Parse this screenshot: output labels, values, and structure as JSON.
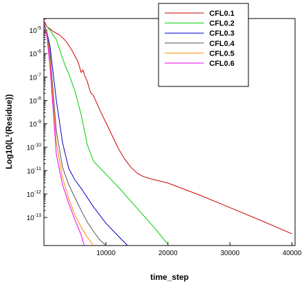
{
  "chart_data": {
    "type": "line",
    "xlabel": "time_step",
    "ylabel": "Log10(L¹(Residue))",
    "xlim": [
      0,
      40500
    ],
    "ylim": [
      -14.2,
      -4.5
    ],
    "y_scale": "log10",
    "grid": false,
    "legend_position": "top-right",
    "x_ticks": [
      {
        "value": 10000,
        "label": "10000"
      },
      {
        "value": 20000,
        "label": "20000"
      },
      {
        "value": 30000,
        "label": "30000"
      },
      {
        "value": 40000,
        "label": "40000"
      }
    ],
    "y_ticks": [
      {
        "value": -5,
        "base": "10",
        "exp": "-5"
      },
      {
        "value": -6,
        "base": "10",
        "exp": "-6"
      },
      {
        "value": -7,
        "base": "10",
        "exp": "-7"
      },
      {
        "value": -8,
        "base": "10",
        "exp": "-8"
      },
      {
        "value": -9,
        "base": "10",
        "exp": "-9"
      },
      {
        "value": -10,
        "base": "10",
        "exp": "-10"
      },
      {
        "value": -11,
        "base": "10",
        "exp": "-11"
      },
      {
        "value": -12,
        "base": "10",
        "exp": "-12"
      },
      {
        "value": -13,
        "base": "10",
        "exp": "-13"
      }
    ],
    "series": [
      {
        "name": "CFL0.1",
        "color": "#cc0000",
        "x": [
          0,
          500,
          1500,
          2500,
          3500,
          4500,
          5500,
          6000,
          6300,
          6600,
          7000,
          7500,
          8000,
          9000,
          10000,
          11000,
          12000,
          13000,
          14000,
          15000,
          16000,
          17000,
          18000,
          20000,
          25000,
          30000,
          35000,
          40000
        ],
        "y": [
          -4.6,
          -4.85,
          -5.05,
          -5.2,
          -5.45,
          -5.85,
          -6.35,
          -6.8,
          -6.7,
          -6.95,
          -7.2,
          -7.65,
          -7.8,
          -8.4,
          -8.95,
          -9.5,
          -10.05,
          -10.5,
          -10.85,
          -11.1,
          -11.25,
          -11.33,
          -11.4,
          -11.53,
          -12.03,
          -12.58,
          -13.13,
          -13.7
        ]
      },
      {
        "name": "CFL0.2",
        "color": "#00cc00",
        "x": [
          0,
          500,
          1000,
          2000,
          3000,
          3500,
          4000,
          5000,
          6000,
          7000,
          8000,
          10000,
          12000,
          14000,
          16000,
          18000,
          20000
        ],
        "y": [
          -4.7,
          -4.85,
          -5.0,
          -5.4,
          -6.2,
          -6.55,
          -6.85,
          -7.6,
          -8.6,
          -9.9,
          -10.6,
          -11.15,
          -11.7,
          -12.3,
          -12.9,
          -13.5,
          -14.15
        ]
      },
      {
        "name": "CFL0.3",
        "color": "#0000cc",
        "x": [
          0,
          500,
          1000,
          2000,
          3000,
          4000,
          5000,
          6000,
          8000,
          10000,
          12000,
          13500
        ],
        "y": [
          -4.7,
          -5.1,
          -5.7,
          -8.0,
          -9.8,
          -10.9,
          -11.4,
          -11.75,
          -12.55,
          -13.25,
          -13.8,
          -14.2
        ]
      },
      {
        "name": "CFL0.4",
        "color": "#555555",
        "x": [
          0,
          500,
          1000,
          2000,
          3000,
          4000,
          5000,
          6000,
          7000,
          8000,
          9000,
          10000
        ],
        "y": [
          -4.7,
          -5.1,
          -6.0,
          -9.3,
          -10.85,
          -11.6,
          -12.15,
          -12.7,
          -13.2,
          -13.6,
          -13.95,
          -14.2
        ]
      },
      {
        "name": "CFL0.5",
        "color": "#ff8800",
        "x": [
          0,
          500,
          1000,
          2000,
          3000,
          4000,
          5000,
          6000,
          7000,
          8000
        ],
        "y": [
          -4.7,
          -5.2,
          -6.3,
          -9.8,
          -11.3,
          -12.2,
          -12.9,
          -13.4,
          -13.85,
          -14.2
        ]
      },
      {
        "name": "CFL0.6",
        "color": "#ee00ee",
        "x": [
          0,
          500,
          1000,
          2000,
          3000,
          4000,
          5000,
          6000,
          6500
        ],
        "y": [
          -4.7,
          -5.3,
          -6.6,
          -10.3,
          -11.6,
          -12.4,
          -13.1,
          -13.75,
          -14.2
        ]
      }
    ]
  }
}
